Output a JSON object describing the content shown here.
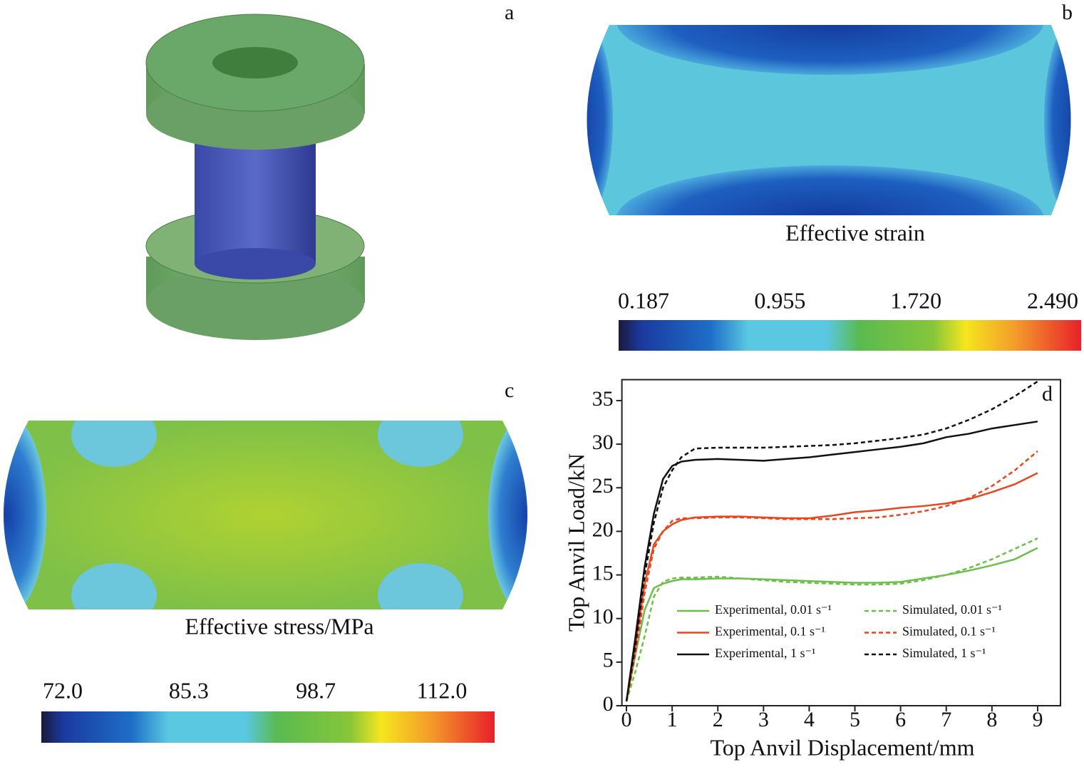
{
  "figure": {
    "labels": [
      "a",
      "b",
      "c",
      "d"
    ]
  },
  "strain_map": {
    "caption": "Effective strain",
    "lim": [
      0.187,
      2.49
    ],
    "ticks": [
      0.187,
      0.955,
      {
        "value": 1.72,
        "label": "1.720"
      },
      {
        "value": 2.49,
        "label": "2.490"
      }
    ]
  },
  "stress_map": {
    "caption": "Effective stress/MPa",
    "lim": [
      72,
      112
    ],
    "ticks": [
      {
        "value": 72,
        "label": "72.0"
      },
      85.3,
      98.7,
      {
        "value": 112,
        "label": "112.0"
      }
    ]
  },
  "chart_data": {
    "type": "line",
    "x_label": "Top Anvil Displacement/mm",
    "y_label": "Top Anvil Load/kN",
    "xlim": [
      -0.1,
      9.5
    ],
    "ylim": [
      0,
      37.4
    ],
    "xticks": [
      0,
      1,
      2,
      3,
      4,
      5,
      6,
      7,
      8,
      9
    ],
    "yticks": [
      0,
      5,
      10,
      15,
      20,
      25,
      30,
      35
    ],
    "x": [
      0,
      0.2,
      0.4,
      0.6,
      0.8,
      1,
      1.2,
      1.5,
      2,
      2.5,
      3,
      3.5,
      4,
      4.5,
      5,
      5.5,
      6,
      6.5,
      7,
      7.5,
      8,
      8.5,
      9
    ],
    "series": [
      {
        "name": "Experimental, 0.01 s⁻¹",
        "color": "#6cc04a",
        "dashed": false,
        "values": [
          0.5,
          6,
          11,
          13.5,
          14,
          14.3,
          14.5,
          14.5,
          14.6,
          14.6,
          14.5,
          14.4,
          14.3,
          14.2,
          14.1,
          14.1,
          14.2,
          14.6,
          15,
          15.5,
          16.1,
          16.8,
          18.1
        ]
      },
      {
        "name": "Experimental, 0.1 s⁻¹",
        "color": "#e8461e",
        "dashed": false,
        "values": [
          0.5,
          7,
          14,
          18.5,
          20,
          20.8,
          21.3,
          21.6,
          21.7,
          21.7,
          21.6,
          21.5,
          21.5,
          21.8,
          22.2,
          22.4,
          22.7,
          22.9,
          23.2,
          23.7,
          24.5,
          25.4,
          26.7
        ]
      },
      {
        "name": "Experimental, 1 s⁻¹",
        "color": "#111111",
        "dashed": false,
        "values": [
          0.5,
          8,
          16,
          22,
          26,
          27.5,
          28,
          28.2,
          28.3,
          28.2,
          28.1,
          28.3,
          28.5,
          28.8,
          29.1,
          29.4,
          29.7,
          30.1,
          30.8,
          31.2,
          31.8,
          32.2,
          32.6
        ]
      },
      {
        "name": "Simulated, 0.01 s⁻¹",
        "color": "#6cc04a",
        "dashed": true,
        "values": [
          0.5,
          4,
          8,
          12.5,
          14.2,
          14.6,
          14.7,
          14.7,
          14.8,
          14.6,
          14.4,
          14.2,
          14.1,
          14,
          13.9,
          13.9,
          14,
          14.4,
          15,
          15.8,
          16.8,
          18,
          19.2
        ]
      },
      {
        "name": "Simulated, 0.1 s⁻¹",
        "color": "#e8461e",
        "dashed": true,
        "values": [
          0.5,
          6,
          13,
          18,
          20,
          21.2,
          21.5,
          21.5,
          21.6,
          21.6,
          21.5,
          21.4,
          21.4,
          21.4,
          21.5,
          21.6,
          21.9,
          22.3,
          22.9,
          23.8,
          25.2,
          27,
          29.2
        ]
      },
      {
        "name": "Simulated, 1 s⁻¹",
        "color": "#111111",
        "dashed": true,
        "values": [
          0.5,
          7,
          15,
          21,
          25,
          27,
          28.5,
          29.5,
          29.6,
          29.6,
          29.6,
          29.7,
          29.8,
          29.9,
          30.1,
          30.4,
          30.7,
          31.1,
          31.8,
          32.8,
          34,
          35.5,
          37.2
        ]
      }
    ]
  }
}
